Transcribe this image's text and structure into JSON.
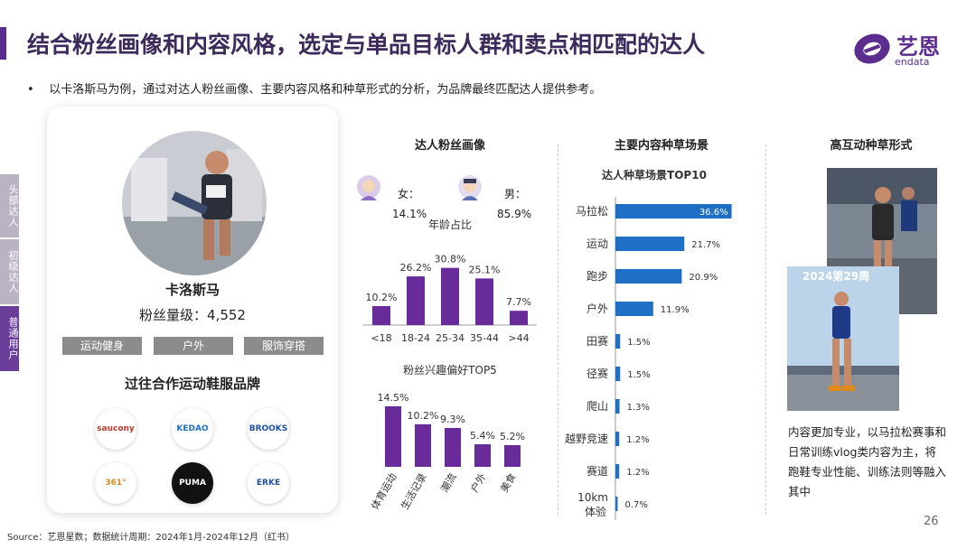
{
  "title": "结合粉丝画像和内容风格，选定与单品目标人群和卖点相匹配的达人",
  "subtitle": "以卡洛斯马为例，通过对达人粉丝画像、主要内容风格和种草形式的分析，为品牌最终匹配达人提供参考。",
  "logo": {
    "cn": "艺恩",
    "en": "endata"
  },
  "side_tabs": [
    "头部达人",
    "初级达人",
    "普通用户"
  ],
  "profile": {
    "name": "卡洛斯马",
    "fans_label": "粉丝量级：4,552",
    "tags": [
      "运动健身",
      "户外",
      "服饰穿搭"
    ],
    "brands_title": "过往合作运动鞋服品牌",
    "brands": [
      "saucony",
      "KEDAO",
      "BROOKS",
      "361°",
      "PUMA",
      "ERKE"
    ]
  },
  "fans_section": {
    "title": "达人粉丝画像",
    "female_label": "女：",
    "female_pct": "14.1%",
    "male_label": "男：",
    "male_pct": "85.9%"
  },
  "content_section": {
    "title": "主要内容种草场景"
  },
  "form_section": {
    "title": "高互动种草形式",
    "photo_overlay": "2024第29周",
    "note": "内容更加专业，以马拉松赛事和日常训练vlog类内容为主，将跑鞋专业性能、训练法则等融入其中"
  },
  "source": "Source：艺恩星数；数据统计周期：2024年1月-2024年12月（红书）",
  "page_number": "26",
  "colors": {
    "accent": "#5b2d8e",
    "bar_purple": "#6a2b9a",
    "bar_blue": "#1f6fc4"
  },
  "chart_data": [
    {
      "type": "bar",
      "title": "年龄占比",
      "categories": [
        "<18",
        "18-24",
        "25-34",
        "35-44",
        ">44"
      ],
      "values": [
        10.2,
        26.2,
        30.8,
        25.1,
        7.7
      ],
      "labels": [
        "10.2%",
        "26.2%",
        "30.8%",
        "25.1%",
        "7.7%"
      ],
      "ylim": [
        0,
        35
      ]
    },
    {
      "type": "bar",
      "title": "粉丝兴趣偏好TOP5",
      "categories": [
        "体育运动",
        "生活记录",
        "潮流",
        "户外",
        "美食"
      ],
      "values": [
        14.5,
        10.2,
        9.3,
        5.4,
        5.2
      ],
      "labels": [
        "14.5%",
        "10.2%",
        "9.3%",
        "5.4%",
        "5.2%"
      ],
      "ylim": [
        0,
        16
      ]
    },
    {
      "type": "bar",
      "orientation": "horizontal",
      "title": "达人种草场景TOP10",
      "categories": [
        "马拉松",
        "运动",
        "跑步",
        "户外",
        "田赛",
        "径赛",
        "爬山",
        "越野竞速",
        "赛道",
        "10km体验"
      ],
      "values": [
        36.6,
        21.7,
        20.9,
        11.9,
        1.5,
        1.5,
        1.3,
        1.2,
        1.2,
        0.7
      ],
      "labels": [
        "36.6%",
        "21.7%",
        "20.9%",
        "11.9%",
        "1.5%",
        "1.5%",
        "1.3%",
        "1.2%",
        "1.2%",
        "0.7%"
      ],
      "xlim": [
        0,
        37
      ]
    }
  ]
}
